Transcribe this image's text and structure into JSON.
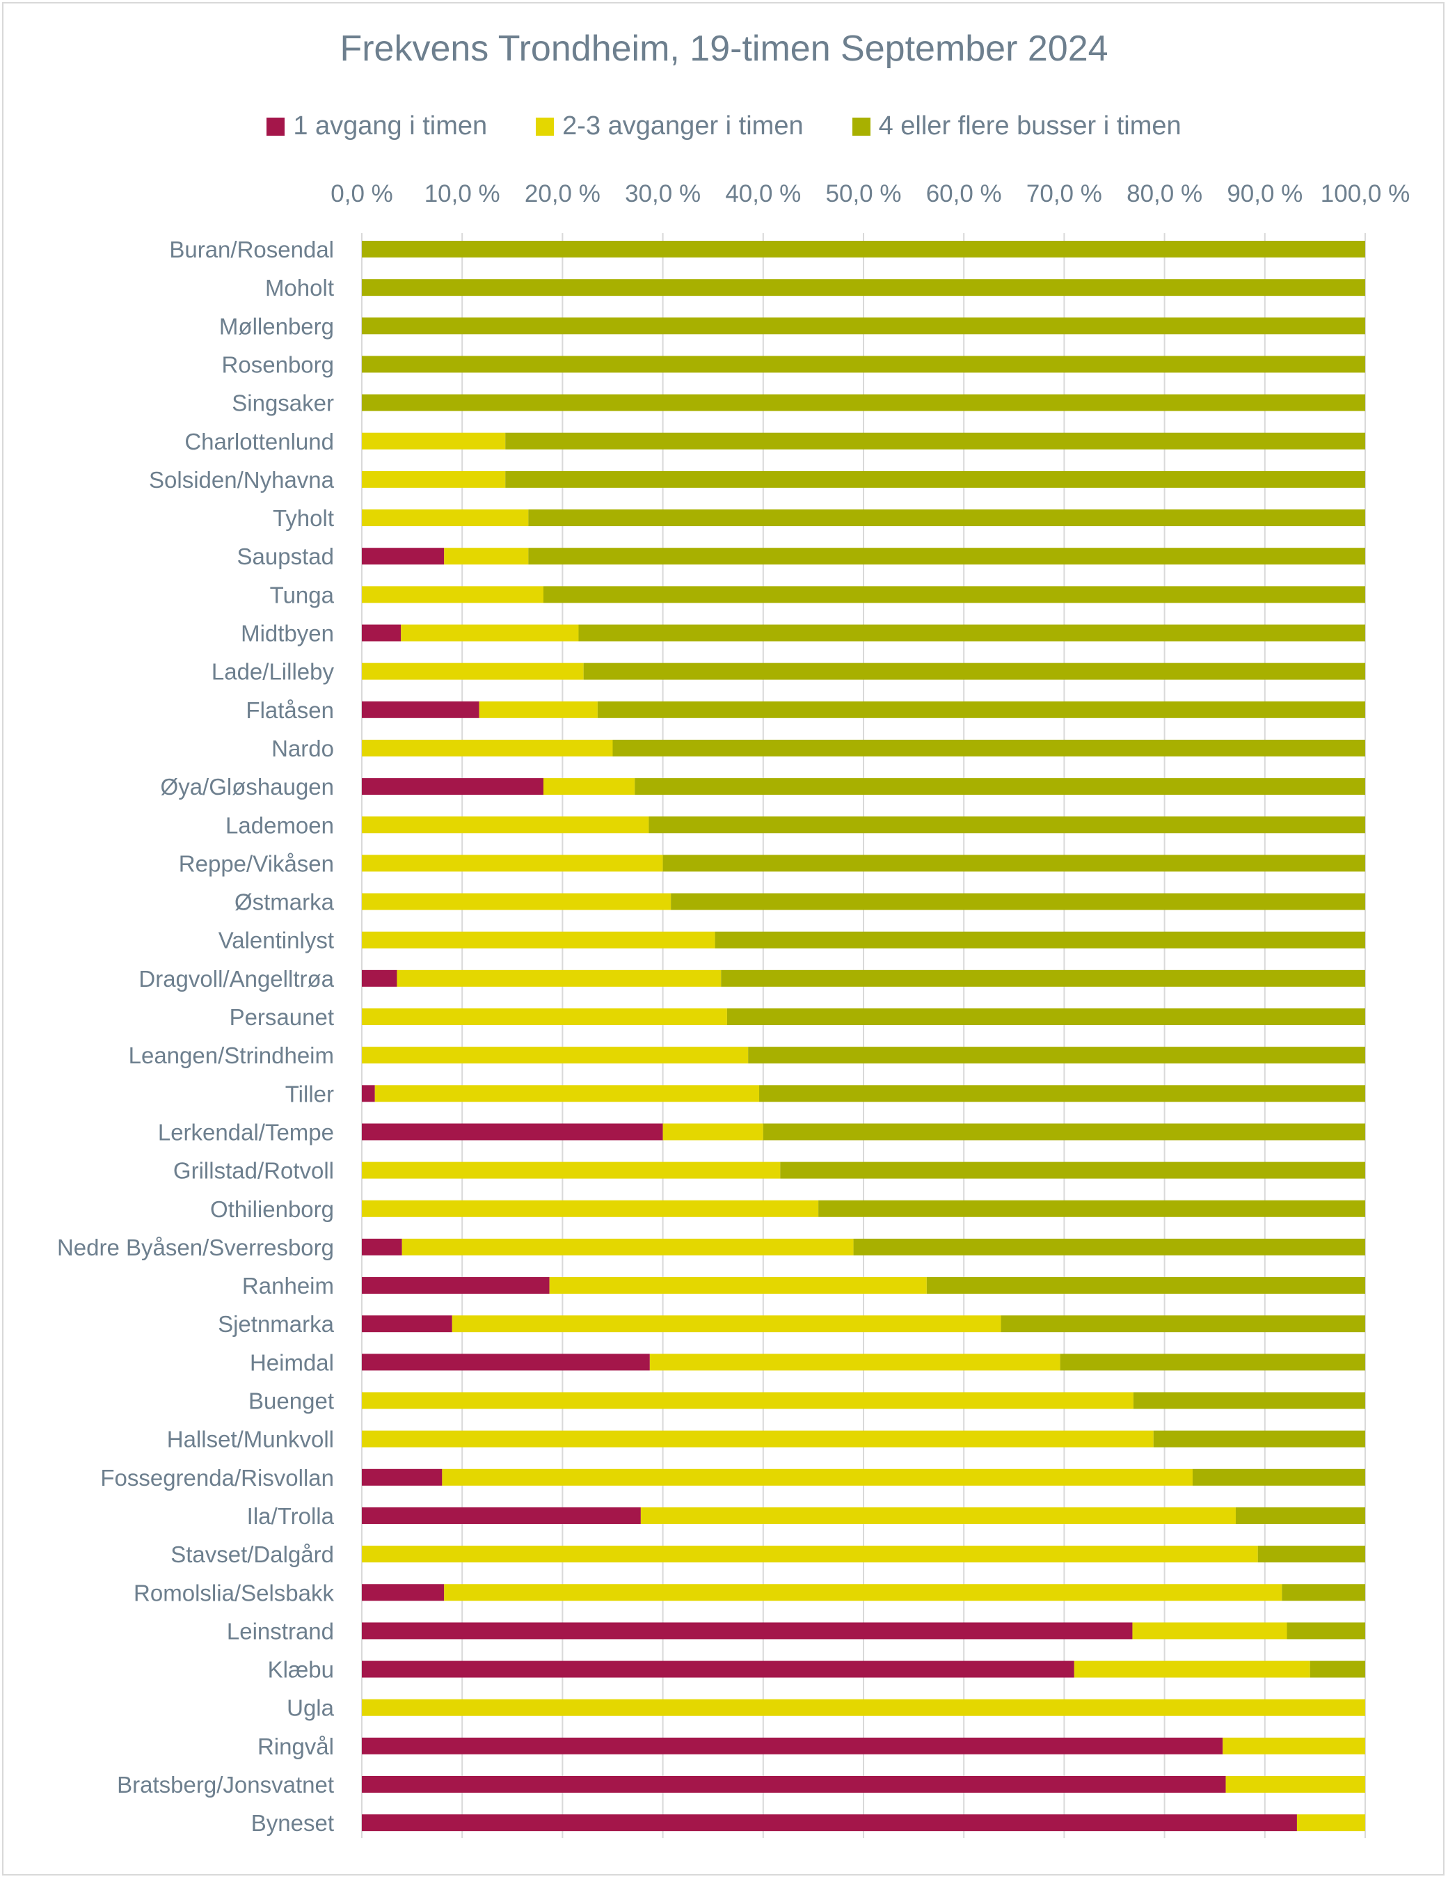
{
  "chart_data": {
    "type": "bar",
    "orientation": "horizontal",
    "stacked": "100%",
    "title": "Frekvens Trondheim, 19-timen September 2024",
    "x_axis_position": "top",
    "xlim": [
      0,
      100
    ],
    "x_ticks": [
      "0,0 %",
      "10,0 %",
      "20,0 %",
      "30,0 %",
      "40,0 %",
      "50,0 %",
      "60,0 %",
      "70,0 %",
      "80,0 %",
      "90,0 %",
      "100,0 %"
    ],
    "legend_position": "top",
    "grid": true,
    "categories": [
      "Buran/Rosendal",
      "Moholt",
      "Møllenberg",
      "Rosenborg",
      "Singsaker",
      "Charlottenlund",
      "Solsiden/Nyhavna",
      "Tyholt",
      "Saupstad",
      "Tunga",
      "Midtbyen",
      "Lade/Lilleby",
      "Flatåsen",
      "Nardo",
      "Øya/Gløshaugen",
      "Lademoen",
      "Reppe/Vikåsen",
      "Østmarka",
      "Valentinlyst",
      "Dragvoll/Angelltrøa",
      "Persaunet",
      "Leangen/Strindheim",
      "Tiller",
      "Lerkendal/Tempe",
      "Grillstad/Rotvoll",
      "Othilienborg",
      "Nedre Byåsen/Sverresborg",
      "Ranheim",
      "Sjetnmarka",
      "Heimdal",
      "Buenget",
      "Hallset/Munkvoll",
      "Fossegrenda/Risvollan",
      "Ila/Trolla",
      "Stavset/Dalgård",
      "Romolslia/Selsbakk",
      "Leinstrand",
      "Klæbu",
      "Ugla",
      "Ringvål",
      "Bratsberg/Jonsvatnet",
      "Byneset"
    ],
    "series": [
      {
        "name": "1 avgang i timen",
        "color": "#a4164a",
        "values": [
          0,
          0,
          0,
          0,
          0,
          0,
          0,
          0,
          8.2,
          0,
          3.9,
          0,
          11.7,
          0,
          18.1,
          0,
          0,
          0,
          0,
          3.5,
          0,
          0,
          1.3,
          30,
          0,
          0,
          4,
          18.7,
          9,
          28.7,
          0,
          0,
          8,
          27.8,
          0,
          8.2,
          76.8,
          71,
          0,
          85.8,
          86.1,
          93.2
        ]
      },
      {
        "name": "2-3 avganger i timen",
        "color": "#e4d700",
        "values": [
          0,
          0,
          0,
          0,
          0,
          14.3,
          14.3,
          16.6,
          8.4,
          18.1,
          17.7,
          22.1,
          11.8,
          25,
          9.1,
          28.6,
          30,
          30.8,
          35.2,
          32.3,
          36.4,
          38.5,
          38.3,
          10,
          41.7,
          45.5,
          45,
          37.6,
          54.7,
          40.9,
          76.9,
          78.9,
          74.8,
          59.3,
          89.3,
          83.5,
          15.4,
          23.5,
          100,
          14.2,
          13.9,
          6.8
        ]
      },
      {
        "name": "4 eller flere busser i timen",
        "color": "#a8b000",
        "values": [
          100,
          100,
          100,
          100,
          100,
          85.7,
          85.7,
          83.4,
          83.4,
          81.9,
          78.4,
          77.9,
          76.5,
          75,
          72.8,
          71.4,
          70,
          69.2,
          64.8,
          64.2,
          63.6,
          61.5,
          60.4,
          60,
          58.3,
          54.5,
          51,
          43.7,
          36.3,
          30.4,
          23.1,
          21.1,
          17.2,
          12.9,
          10.7,
          8.3,
          7.8,
          5.5,
          0,
          0,
          0,
          0
        ]
      }
    ]
  }
}
